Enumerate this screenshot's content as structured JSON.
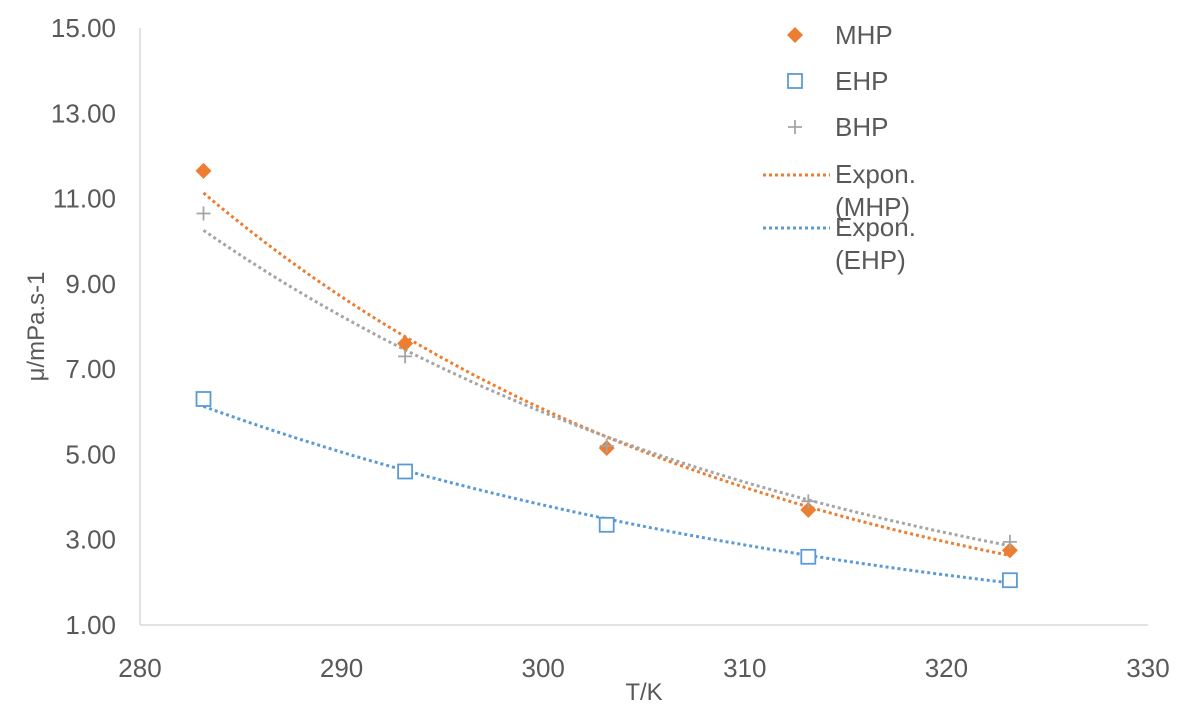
{
  "chart_data": {
    "type": "scatter",
    "xlabel": "T/K",
    "ylabel": "μ/mPa.s-1",
    "xlim": [
      280,
      330
    ],
    "ylim": [
      1,
      15
    ],
    "x_ticks": [
      "280",
      "290",
      "300",
      "310",
      "320",
      "330"
    ],
    "y_ticks": [
      "1.00",
      "3.00",
      "5.00",
      "7.00",
      "9.00",
      "11.00",
      "13.00",
      "15.00"
    ],
    "grid": false,
    "legend_position": "top-right",
    "x": [
      283.15,
      293.15,
      303.15,
      313.15,
      323.15
    ],
    "series": [
      {
        "name": "MHP",
        "marker": "diamond-filled",
        "color": "#ED7D31",
        "values": [
          11.65,
          7.6,
          5.15,
          3.7,
          2.75
        ]
      },
      {
        "name": "EHP",
        "marker": "square-open",
        "color": "#5B9BD5",
        "values": [
          6.3,
          4.6,
          3.35,
          2.6,
          2.05
        ]
      },
      {
        "name": "BHP",
        "marker": "plus",
        "color": "#A5A5A5",
        "values": [
          10.65,
          7.3,
          5.2,
          3.9,
          2.95
        ]
      }
    ],
    "trendlines": [
      {
        "name": "Expon.\n(MHP)",
        "legend_lines": [
          "Expon.",
          "(MHP)"
        ],
        "of": "MHP",
        "style": "dotted",
        "color": "#ED7D31",
        "in_legend": true
      },
      {
        "name": "Expon.\n(EHP)",
        "legend_lines": [
          "Expon.",
          "(EHP)"
        ],
        "of": "EHP",
        "style": "dotted",
        "color": "#5B9BD5",
        "in_legend": true
      },
      {
        "name": "",
        "of": "BHP",
        "style": "dotted",
        "color": "#A5A5A5",
        "in_legend": false
      }
    ]
  }
}
